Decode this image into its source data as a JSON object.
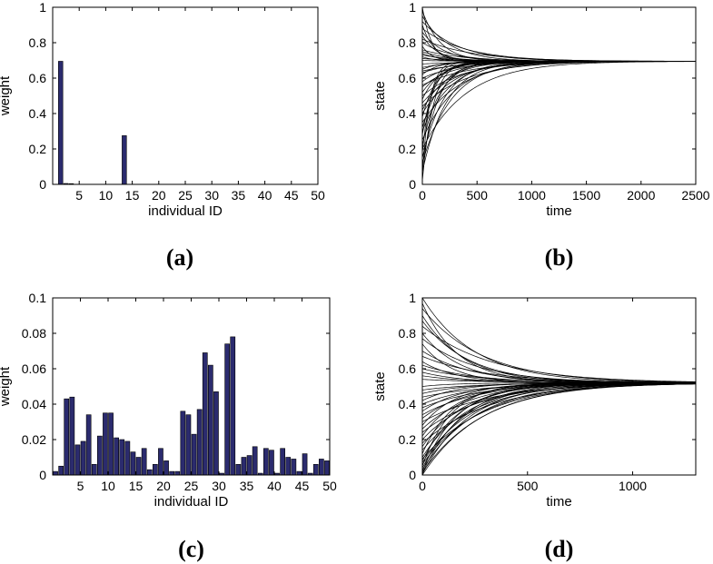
{
  "chart_data": [
    {
      "id": "a",
      "type": "bar",
      "panel_label": "(a)",
      "xlabel": "individual ID",
      "ylabel": "weight",
      "xlim": [
        0,
        50
      ],
      "ylim": [
        0,
        1
      ],
      "xticks": [
        5,
        10,
        15,
        20,
        25,
        30,
        35,
        40,
        45,
        50
      ],
      "yticks": [
        0,
        0.2,
        0.4,
        0.6,
        0.8,
        1
      ],
      "ytick_labels": [
        "0",
        "0.2",
        "0.4",
        "0.6",
        "0.8",
        "1"
      ],
      "bar_color": "#2b2b6e",
      "values": [
        0,
        0.695,
        0.005,
        0.004,
        0,
        0,
        0,
        0,
        0,
        0,
        0,
        0,
        0,
        0.275,
        0,
        0,
        0,
        0,
        0,
        0,
        0,
        0,
        0,
        0,
        0,
        0,
        0,
        0,
        0,
        0,
        0,
        0,
        0,
        0,
        0,
        0,
        0,
        0,
        0,
        0,
        0,
        0,
        0,
        0,
        0,
        0,
        0,
        0,
        0,
        0
      ]
    },
    {
      "id": "b",
      "type": "line",
      "panel_label": "(b)",
      "xlabel": "time",
      "ylabel": "state",
      "xlim": [
        0,
        2500
      ],
      "ylim": [
        0,
        1
      ],
      "xticks": [
        0,
        500,
        1000,
        1500,
        2000,
        2500
      ],
      "yticks": [
        0,
        0.2,
        0.4,
        0.6,
        0.8,
        1
      ],
      "ytick_labels": [
        "0",
        "0.2",
        "0.4",
        "0.6",
        "0.8",
        "1"
      ],
      "consensus": 0.695,
      "line_color": "#000000",
      "series_initial_states": [
        1.0,
        0.98,
        0.95,
        0.92,
        0.9,
        0.88,
        0.86,
        0.84,
        0.82,
        0.8,
        0.78,
        0.76,
        0.75,
        0.74,
        0.73,
        0.72,
        0.71,
        0.7,
        0.68,
        0.66,
        0.65,
        0.64,
        0.63,
        0.62,
        0.6,
        0.58,
        0.56,
        0.55,
        0.52,
        0.5,
        0.48,
        0.46,
        0.44,
        0.42,
        0.4,
        0.38,
        0.35,
        0.32,
        0.3,
        0.28,
        0.25,
        0.22,
        0.2,
        0.18,
        0.15,
        0.12,
        0.1,
        0.07,
        0.05,
        0.02
      ],
      "series_rates": [
        0.012,
        0.006,
        0.004,
        0.003,
        0.009,
        0.0025,
        0.005,
        0.007,
        0.0022,
        0.0035,
        0.011,
        0.0028,
        0.004,
        0.006,
        0.0032,
        0.008,
        0.0025,
        0.0045,
        0.0021,
        0.0038,
        0.0055,
        0.0026,
        0.0033,
        0.0068,
        0.0029,
        0.0042,
        0.0023,
        0.0036,
        0.0051,
        0.0027,
        0.0062,
        0.0031,
        0.0024,
        0.0044,
        0.0035,
        0.0075,
        0.0028,
        0.0058,
        0.004,
        0.009,
        0.0033,
        0.006,
        0.0025,
        0.012,
        0.0048,
        0.0037,
        0.007,
        0.0045,
        0.015,
        0.01
      ]
    },
    {
      "id": "c",
      "type": "bar",
      "panel_label": "(c)",
      "xlabel": "individual ID",
      "ylabel": "weight",
      "xlim": [
        0,
        50
      ],
      "ylim": [
        0,
        0.1
      ],
      "xticks": [
        5,
        10,
        15,
        20,
        25,
        30,
        35,
        40,
        45,
        50
      ],
      "yticks": [
        0,
        0.02,
        0.04,
        0.06,
        0.08,
        0.1
      ],
      "ytick_labels": [
        "0",
        "0.02",
        "0.04",
        "0.06",
        "0.08",
        "0.1"
      ],
      "bar_color": "#2b2b6e",
      "values": [
        0.002,
        0.005,
        0.043,
        0.044,
        0.017,
        0.019,
        0.034,
        0.006,
        0.022,
        0.035,
        0.035,
        0.021,
        0.02,
        0.019,
        0.013,
        0.01,
        0.015,
        0.003,
        0.006,
        0.015,
        0.008,
        0.002,
        0.002,
        0.036,
        0.034,
        0.023,
        0.037,
        0.069,
        0.062,
        0.047,
        0.001,
        0.074,
        0.078,
        0.006,
        0.01,
        0.011,
        0.016,
        0.001,
        0.015,
        0.014,
        0.001,
        0.015,
        0.01,
        0.009,
        0.002,
        0.012,
        0.001,
        0.006,
        0.009,
        0.008
      ]
    },
    {
      "id": "d",
      "type": "line",
      "panel_label": "(d)",
      "xlabel": "time",
      "ylabel": "state",
      "xlim": [
        0,
        1300
      ],
      "ylim": [
        0,
        1
      ],
      "xticks": [
        0,
        500,
        1000
      ],
      "yticks": [
        0,
        0.2,
        0.4,
        0.6,
        0.8,
        1
      ],
      "ytick_labels": [
        "0",
        "0.2",
        "0.4",
        "0.6",
        "0.8",
        "1"
      ],
      "consensus": 0.52,
      "line_color": "#000000",
      "series_initial_states": [
        1.0,
        0.97,
        0.94,
        0.9,
        0.87,
        0.84,
        0.8,
        0.77,
        0.74,
        0.7,
        0.67,
        0.64,
        0.62,
        0.6,
        0.58,
        0.56,
        0.54,
        0.5,
        0.48,
        0.46,
        0.44,
        0.42,
        0.4,
        0.38,
        0.36,
        0.34,
        0.32,
        0.3,
        0.28,
        0.26,
        0.24,
        0.22,
        0.2,
        0.18,
        0.16,
        0.14,
        0.12,
        0.1,
        0.09,
        0.08,
        0.07,
        0.06,
        0.05,
        0.04,
        0.03,
        0.02,
        0.015,
        0.01,
        0.005,
        0.0
      ],
      "series_rates": [
        0.004,
        0.006,
        0.0035,
        0.005,
        0.0045,
        0.003,
        0.0055,
        0.0038,
        0.007,
        0.0042,
        0.0033,
        0.006,
        0.004,
        0.0036,
        0.005,
        0.0044,
        0.003,
        0.0065,
        0.0039,
        0.0047,
        0.0032,
        0.0058,
        0.0041,
        0.0035,
        0.0052,
        0.0037,
        0.0046,
        0.003,
        0.0062,
        0.0043,
        0.0034,
        0.0056,
        0.004,
        0.0031,
        0.0049,
        0.0038,
        0.0068,
        0.0045,
        0.0033,
        0.0054,
        0.0041,
        0.0036,
        0.0072,
        0.0047,
        0.0039,
        0.006,
        0.0034,
        0.0052,
        0.0044,
        0.0035
      ]
    }
  ]
}
